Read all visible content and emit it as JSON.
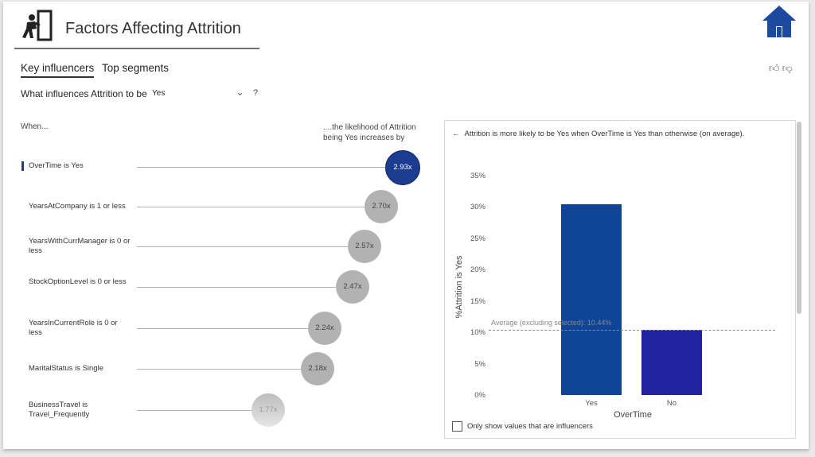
{
  "header": {
    "title": "Factors Affecting Attrition",
    "logo_icon": "person-exiting-door-icon",
    "home_icon": "home-icon",
    "home_color": "#1b4a9e"
  },
  "tabs": [
    {
      "label": "Key influencers",
      "active": true
    },
    {
      "label": "Top segments",
      "active": false
    }
  ],
  "feedback": {
    "like_icon": "thumbs-up-icon",
    "dislike_icon": "thumbs-down-icon"
  },
  "question": {
    "prefix": "What influences Attrition to be",
    "selected": "Yes",
    "help": "?"
  },
  "columns": {
    "when": "When...",
    "likelihood": "....the likelihood of Attrition being Yes increases by"
  },
  "influencers": [
    {
      "label": "OverTime is Yes",
      "value": "2.93x",
      "selected": true
    },
    {
      "label": "YearsAtCompany is 1 or less",
      "value": "2.70x"
    },
    {
      "label": "YearsWithCurrManager is 0 or less",
      "value": "2.57x"
    },
    {
      "label": "StockOptionLevel is 0 or less",
      "value": "2.47x"
    },
    {
      "label": "YearsInCurrentRole is 0 or less",
      "value": "2.24x"
    },
    {
      "label": "MaritalStatus is Single",
      "value": "2.18x"
    },
    {
      "label": "BusinessTravel is Travel_Frequently",
      "value": "1.77x"
    }
  ],
  "detail": {
    "back_arrow": "←",
    "heading": "Attrition is more likely to be Yes when OverTime is Yes than otherwise (on average).",
    "average_label": "Average (excluding selected): 10.44%",
    "checkbox_label": "Only show values that are influencers"
  },
  "chart_data": {
    "type": "bar",
    "categories": [
      "Yes",
      "No"
    ],
    "values": [
      30.5,
      10.4
    ],
    "colors": [
      "#0f4597",
      "#1f23a0"
    ],
    "xlabel": "OverTime",
    "ylabel": "%Attrition is Yes",
    "yticks": [
      "35%",
      "30%",
      "25%",
      "20%",
      "15%",
      "10%",
      "5%",
      "0%"
    ],
    "ylim": [
      0,
      35
    ],
    "average": 10.44
  }
}
